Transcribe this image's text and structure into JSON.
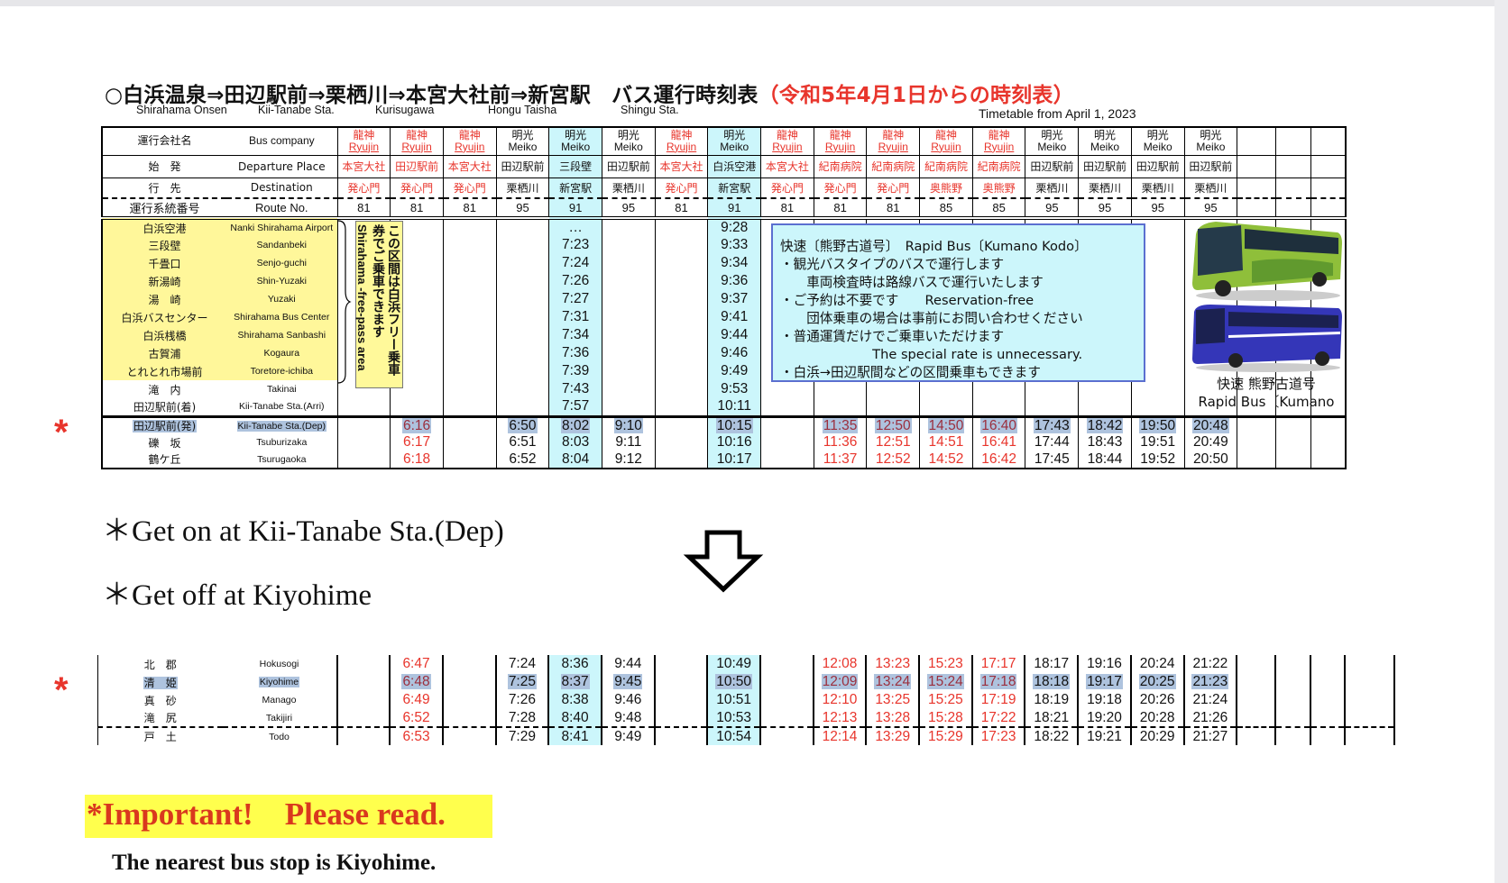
{
  "title": {
    "main": "○白浜温泉⇒田辺駅前⇒栗栖川⇒本宮大社前⇒新宮駅　バス運行時刻表",
    "period": "（令和5年4月1日からの時刻表）",
    "subtitles": [
      "Shirahama Onsen",
      "Kii-Tanabe Sta.",
      "Kurisugawa",
      "Hongu Taisha",
      "Shingu Sta."
    ],
    "timetable_from": "Timetable from April 1, 2023"
  },
  "colors": {
    "ryujin": "#e8352c",
    "highlight_column": "#ccf6fb",
    "free_area": "#fff79a",
    "selected_stop": "#aec3de"
  },
  "upper": {
    "header_labels": {
      "company": {
        "jp": "運行会社名",
        "en": "Bus company"
      },
      "departure": {
        "jp": "始　発",
        "en": "Departure Place"
      },
      "destination": {
        "jp": "行　先",
        "en": "Destination"
      },
      "route": {
        "jp": "運行系統番号",
        "en": "Route No."
      }
    },
    "stops_a": [
      {
        "jp": "白浜空港",
        "en": "Nanki Shirahama Airport"
      },
      {
        "jp": "三段壁",
        "en": "Sandanbeki"
      },
      {
        "jp": "千畳口",
        "en": "Senjo-guchi"
      },
      {
        "jp": "新湯崎",
        "en": "Shin-Yuzaki"
      },
      {
        "jp": "湯　崎",
        "en": "Yuzaki"
      },
      {
        "jp": "白浜バスセンター",
        "en": "Shirahama Bus Center"
      },
      {
        "jp": "白浜桟橋",
        "en": "Shirahama Sanbashi"
      },
      {
        "jp": "古賀浦",
        "en": "Kogaura"
      },
      {
        "jp": "とれとれ市場前",
        "en": "Toretore-ichiba"
      },
      {
        "jp": "滝　内",
        "en": "Takinai"
      },
      {
        "jp": "田辺駅前(着)",
        "en": "Kii-Tanabe Sta.(Arri)"
      }
    ],
    "stops_b": [
      {
        "jp": "田辺駅前(発)",
        "en": "Kii-Tanabe Sta.(Dep)"
      },
      {
        "jp": "礫　坂",
        "en": "Tsuburizaka"
      },
      {
        "jp": "鶴ケ丘",
        "en": "Tsurugaoka"
      }
    ]
  },
  "lower": {
    "stops": [
      {
        "jp": "北　郡",
        "en": "Hokusogi"
      },
      {
        "jp": "清　姫",
        "en": "Kiyohime"
      },
      {
        "jp": "真　砂",
        "en": "Manago"
      },
      {
        "jp": "滝　尻",
        "en": "Takijiri"
      },
      {
        "jp": "戸　土",
        "en": "Todo"
      }
    ]
  },
  "columns": [
    {
      "company_jp": "龍神",
      "company_en": "Ryujin",
      "operator": "ryujin",
      "highlight": false,
      "departure": "本宮大社",
      "destination": "発心門",
      "route": "81",
      "a": [
        "",
        "",
        "",
        "",
        "",
        "",
        "",
        "",
        "",
        "",
        ""
      ],
      "b": [
        "",
        "",
        ""
      ],
      "c": [
        "",
        "",
        "",
        "",
        ""
      ]
    },
    {
      "company_jp": "龍神",
      "company_en": "Ryujin",
      "operator": "ryujin",
      "highlight": false,
      "departure": "田辺駅前",
      "destination": "発心門",
      "route": "81",
      "a": [
        "",
        "",
        "",
        "",
        "",
        "",
        "",
        "",
        "",
        "",
        ""
      ],
      "b": [
        "6:16",
        "6:17",
        "6:18"
      ],
      "c": [
        "6:47",
        "6:48",
        "6:49",
        "6:52",
        "6:53"
      ]
    },
    {
      "company_jp": "龍神",
      "company_en": "Ryujin",
      "operator": "ryujin",
      "highlight": false,
      "departure": "本宮大社",
      "destination": "発心門",
      "route": "81",
      "a": [
        "",
        "",
        "",
        "",
        "",
        "",
        "",
        "",
        "",
        "",
        ""
      ],
      "b": [
        "",
        "",
        ""
      ],
      "c": [
        "",
        "",
        "",
        "",
        ""
      ]
    },
    {
      "company_jp": "明光",
      "company_en": "Meiko",
      "operator": "meiko",
      "highlight": false,
      "departure": "田辺駅前",
      "destination": "栗栖川",
      "route": "95",
      "a": [
        "",
        "",
        "",
        "",
        "",
        "",
        "",
        "",
        "",
        "",
        ""
      ],
      "b": [
        "6:50",
        "6:51",
        "6:52"
      ],
      "c": [
        "7:24",
        "7:25",
        "7:26",
        "7:28",
        "7:29"
      ]
    },
    {
      "company_jp": "明光",
      "company_en": "Meiko",
      "operator": "meiko",
      "highlight": true,
      "departure": "三段壁",
      "destination": "新宮駅",
      "route": "91",
      "a": [
        "…",
        "7:23",
        "7:24",
        "7:26",
        "7:27",
        "7:31",
        "7:34",
        "7:36",
        "7:39",
        "7:43",
        "7:57"
      ],
      "b": [
        "8:02",
        "8:03",
        "8:04"
      ],
      "c": [
        "8:36",
        "8:37",
        "8:38",
        "8:40",
        "8:41"
      ]
    },
    {
      "company_jp": "明光",
      "company_en": "Meiko",
      "operator": "meiko",
      "highlight": false,
      "departure": "田辺駅前",
      "destination": "栗栖川",
      "route": "95",
      "a": [
        "",
        "",
        "",
        "",
        "",
        "",
        "",
        "",
        "",
        "",
        ""
      ],
      "b": [
        "9:10",
        "9:11",
        "9:12"
      ],
      "c": [
        "9:44",
        "9:45",
        "9:46",
        "9:48",
        "9:49"
      ]
    },
    {
      "company_jp": "龍神",
      "company_en": "Ryujin",
      "operator": "ryujin",
      "highlight": false,
      "departure": "本宮大社",
      "destination": "発心門",
      "route": "81",
      "a": [
        "",
        "",
        "",
        "",
        "",
        "",
        "",
        "",
        "",
        "",
        ""
      ],
      "b": [
        "",
        "",
        ""
      ],
      "c": [
        "",
        "",
        "",
        "",
        ""
      ]
    },
    {
      "company_jp": "明光",
      "company_en": "Meiko",
      "operator": "meiko",
      "highlight": true,
      "departure": "白浜空港",
      "destination": "新宮駅",
      "route": "91",
      "a": [
        "9:28",
        "9:33",
        "9:34",
        "9:36",
        "9:37",
        "9:41",
        "9:44",
        "9:46",
        "9:49",
        "9:53",
        "10:11"
      ],
      "b": [
        "10:15",
        "10:16",
        "10:17"
      ],
      "c": [
        "10:49",
        "10:50",
        "10:51",
        "10:53",
        "10:54"
      ]
    },
    {
      "company_jp": "龍神",
      "company_en": "Ryujin",
      "operator": "ryujin",
      "highlight": false,
      "departure": "本宮大社",
      "destination": "発心門",
      "route": "81",
      "a": [
        "",
        "",
        "",
        "",
        "",
        "",
        "",
        "",
        "",
        "",
        ""
      ],
      "b": [
        "",
        "",
        ""
      ],
      "c": [
        "",
        "",
        "",
        "",
        ""
      ]
    },
    {
      "company_jp": "龍神",
      "company_en": "Ryujin",
      "operator": "ryujin",
      "highlight": false,
      "departure": "紀南病院",
      "destination": "発心門",
      "route": "81",
      "a": [
        "",
        "",
        "",
        "",
        "",
        "",
        "",
        "",
        "",
        "",
        ""
      ],
      "b": [
        "11:35",
        "11:36",
        "11:37"
      ],
      "c": [
        "12:08",
        "12:09",
        "12:10",
        "12:13",
        "12:14"
      ]
    },
    {
      "company_jp": "龍神",
      "company_en": "Ryujin",
      "operator": "ryujin",
      "highlight": false,
      "departure": "紀南病院",
      "destination": "発心門",
      "route": "81",
      "a": [
        "",
        "",
        "",
        "",
        "",
        "",
        "",
        "",
        "",
        "",
        ""
      ],
      "b": [
        "12:50",
        "12:51",
        "12:52"
      ],
      "c": [
        "13:23",
        "13:24",
        "13:25",
        "13:28",
        "13:29"
      ]
    },
    {
      "company_jp": "龍神",
      "company_en": "Ryujin",
      "operator": "ryujin",
      "highlight": false,
      "departure": "紀南病院",
      "destination": "奥熊野",
      "route": "85",
      "a": [
        "",
        "",
        "",
        "",
        "",
        "",
        "",
        "",
        "",
        "",
        ""
      ],
      "b": [
        "14:50",
        "14:51",
        "14:52"
      ],
      "c": [
        "15:23",
        "15:24",
        "15:25",
        "15:28",
        "15:29"
      ]
    },
    {
      "company_jp": "龍神",
      "company_en": "Ryujin",
      "operator": "ryujin",
      "highlight": false,
      "departure": "紀南病院",
      "destination": "奥熊野",
      "route": "85",
      "a": [
        "",
        "",
        "",
        "",
        "",
        "",
        "",
        "",
        "",
        "",
        ""
      ],
      "b": [
        "16:40",
        "16:41",
        "16:42"
      ],
      "c": [
        "17:17",
        "17:18",
        "17:19",
        "17:22",
        "17:23"
      ]
    },
    {
      "company_jp": "明光",
      "company_en": "Meiko",
      "operator": "meiko",
      "highlight": false,
      "departure": "田辺駅前",
      "destination": "栗栖川",
      "route": "95",
      "a": [
        "",
        "",
        "",
        "",
        "",
        "",
        "",
        "",
        "",
        "",
        ""
      ],
      "b": [
        "17:43",
        "17:44",
        "17:45"
      ],
      "c": [
        "18:17",
        "18:18",
        "18:19",
        "18:21",
        "18:22"
      ]
    },
    {
      "company_jp": "明光",
      "company_en": "Meiko",
      "operator": "meiko",
      "highlight": false,
      "departure": "田辺駅前",
      "destination": "栗栖川",
      "route": "95",
      "a": [
        "",
        "",
        "",
        "",
        "",
        "",
        "",
        "",
        "",
        "",
        ""
      ],
      "b": [
        "18:42",
        "18:43",
        "18:44"
      ],
      "c": [
        "19:16",
        "19:17",
        "19:18",
        "19:20",
        "19:21"
      ]
    },
    {
      "company_jp": "明光",
      "company_en": "Meiko",
      "operator": "meiko",
      "highlight": false,
      "departure": "田辺駅前",
      "destination": "栗栖川",
      "route": "95",
      "a": [
        "",
        "",
        "",
        "",
        "",
        "",
        "",
        "",
        "",
        "",
        ""
      ],
      "b": [
        "19:50",
        "19:51",
        "19:52"
      ],
      "c": [
        "20:24",
        "20:25",
        "20:26",
        "20:28",
        "20:29"
      ]
    },
    {
      "company_jp": "明光",
      "company_en": "Meiko",
      "operator": "meiko",
      "highlight": false,
      "departure": "田辺駅前",
      "destination": "栗栖川",
      "route": "95",
      "a": [
        "",
        "",
        "",
        "",
        "",
        "",
        "",
        "",
        "",
        "",
        ""
      ],
      "b": [
        "20:48",
        "20:49",
        "20:50"
      ],
      "c": [
        "21:22",
        "21:23",
        "21:24",
        "21:26",
        "21:27"
      ]
    }
  ],
  "free_pass": {
    "jp": "この区間は白浜フリー乗車券でご乗車できます",
    "en": "Shirahama -free-pass area"
  },
  "info_box": {
    "lines": [
      "快速〔熊野古道号〕　Rapid Bus〔Kumano Kodo〕",
      "・観光バスタイプのバスで運行します",
      "　　車両検査時は路線バスで運行いたします",
      "・ご予約は不要です　　Reservation-free",
      "　　団体乗車の場合は事前にお問い合わせください",
      "・普通運賃だけでご乗車いただけます",
      "　　　　　　　The special rate is unnecessary.",
      "・白浜→田辺駅間などの区間乗車もできます"
    ]
  },
  "bus_caption": {
    "jp": "快速 熊野古道号",
    "en": "Rapid Bus〔Kumano"
  },
  "markers": {
    "asterisk": "*"
  },
  "notes": {
    "get_on": "＊Get on at Kii-Tanabe Sta.(Dep)",
    "get_off": "＊Get off at Kiyohime",
    "arrow_icon": "down-arrow-outline"
  },
  "important": {
    "heading": "*Important!    Please read.",
    "text": "The nearest bus stop is Kiyohime."
  }
}
